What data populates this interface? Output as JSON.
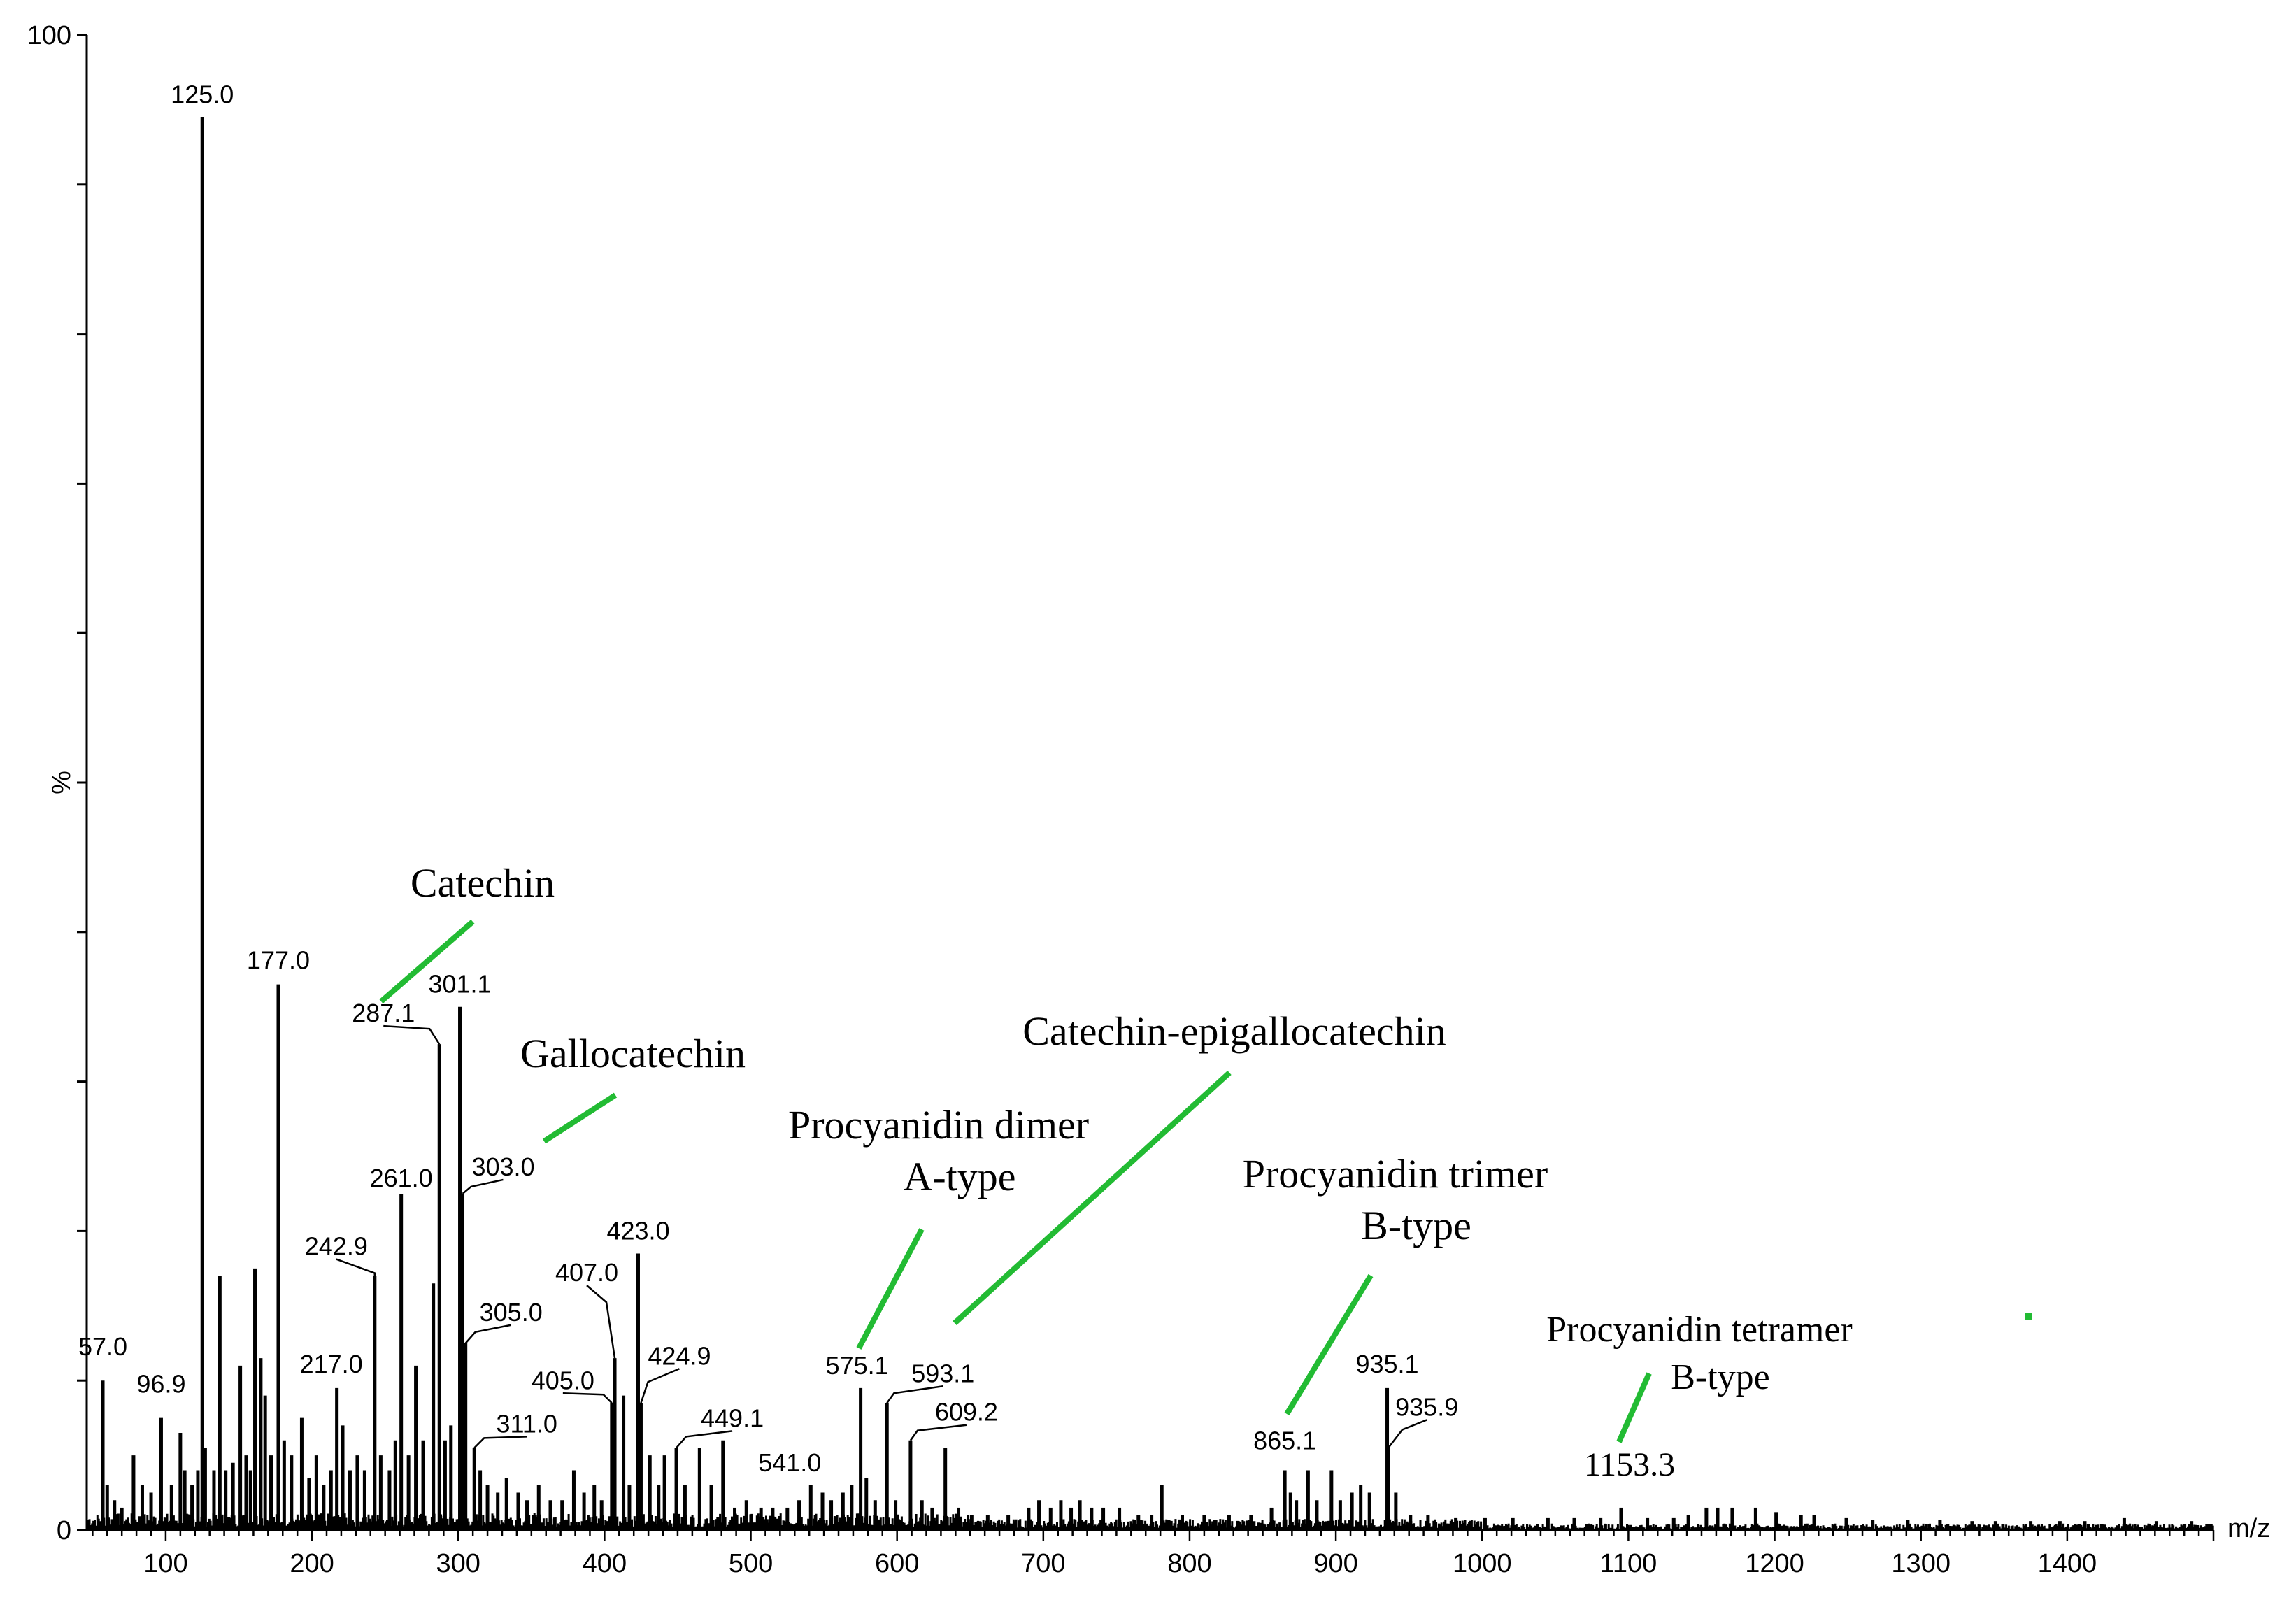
{
  "chart_data": {
    "type": "bar",
    "subtype": "mass-spectrum",
    "xlabel": "m/z",
    "ylabel": "%",
    "xlim": [
      46,
      1500
    ],
    "ylim": [
      0,
      100
    ],
    "x_ticks": [
      100,
      200,
      300,
      400,
      500,
      600,
      700,
      800,
      900,
      1000,
      1100,
      1200,
      1300,
      1400
    ],
    "x_tick_labels": [
      "100",
      "200",
      "300",
      "400",
      "500",
      "600",
      "700",
      "800",
      "900",
      "1000",
      "1100",
      "1200",
      "1300",
      "1400"
    ],
    "y_tick_labels": [
      "0",
      "100"
    ],
    "labeled_peaks": [
      {
        "label": "57.0",
        "mz": 57.0,
        "intensity": 10
      },
      {
        "label": "96.9",
        "mz": 96.9,
        "intensity": 7.5
      },
      {
        "label": "125.0",
        "mz": 125.0,
        "intensity": 94.5
      },
      {
        "label": "177.0",
        "mz": 177.0,
        "intensity": 36.5
      },
      {
        "label": "217.0",
        "mz": 217.0,
        "intensity": 9.5
      },
      {
        "label": "242.9",
        "mz": 242.9,
        "intensity": 17
      },
      {
        "label": "261.0",
        "mz": 261.0,
        "intensity": 22.5
      },
      {
        "label": "287.1",
        "mz": 287.1,
        "intensity": 32.5
      },
      {
        "label": "301.1",
        "mz": 301.1,
        "intensity": 35
      },
      {
        "label": "303.0",
        "mz": 303.0,
        "intensity": 22.5
      },
      {
        "label": "305.0",
        "mz": 305.0,
        "intensity": 12.5
      },
      {
        "label": "311.0",
        "mz": 311.0,
        "intensity": 5.5
      },
      {
        "label": "405.0",
        "mz": 405.0,
        "intensity": 8.5
      },
      {
        "label": "407.0",
        "mz": 407.0,
        "intensity": 11.5
      },
      {
        "label": "423.0",
        "mz": 423.0,
        "intensity": 18.5
      },
      {
        "label": "424.9",
        "mz": 424.9,
        "intensity": 8.5
      },
      {
        "label": "449.1",
        "mz": 449.1,
        "intensity": 5.5
      },
      {
        "label": "541.0",
        "mz": 541.0,
        "intensity": 3
      },
      {
        "label": "575.1",
        "mz": 575.1,
        "intensity": 9.5
      },
      {
        "label": "593.1",
        "mz": 593.1,
        "intensity": 8.5
      },
      {
        "label": "609.2",
        "mz": 609.2,
        "intensity": 6
      },
      {
        "label": "865.1",
        "mz": 865.1,
        "intensity": 4
      },
      {
        "label": "935.1",
        "mz": 935.1,
        "intensity": 9.5
      },
      {
        "label": "935.9",
        "mz": 935.9,
        "intensity": 5.5
      },
      {
        "label": "1153.3",
        "mz": 1153.3,
        "intensity": 1.5
      }
    ],
    "other_peaks": [
      {
        "mz": 60,
        "intensity": 3
      },
      {
        "mz": 65,
        "intensity": 2
      },
      {
        "mz": 70,
        "intensity": 1.5
      },
      {
        "mz": 78,
        "intensity": 5
      },
      {
        "mz": 84,
        "intensity": 3
      },
      {
        "mz": 90,
        "intensity": 2.5
      },
      {
        "mz": 104,
        "intensity": 3
      },
      {
        "mz": 110,
        "intensity": 6.5
      },
      {
        "mz": 113,
        "intensity": 4
      },
      {
        "mz": 118,
        "intensity": 3
      },
      {
        "mz": 122,
        "intensity": 4
      },
      {
        "mz": 127,
        "intensity": 5.5
      },
      {
        "mz": 133,
        "intensity": 4
      },
      {
        "mz": 137,
        "intensity": 17
      },
      {
        "mz": 141,
        "intensity": 4
      },
      {
        "mz": 146,
        "intensity": 4.5
      },
      {
        "mz": 151,
        "intensity": 11
      },
      {
        "mz": 155,
        "intensity": 5
      },
      {
        "mz": 158,
        "intensity": 4
      },
      {
        "mz": 161,
        "intensity": 17.5
      },
      {
        "mz": 165,
        "intensity": 11.5
      },
      {
        "mz": 168,
        "intensity": 9
      },
      {
        "mz": 172,
        "intensity": 5
      },
      {
        "mz": 181,
        "intensity": 6
      },
      {
        "mz": 186,
        "intensity": 5
      },
      {
        "mz": 193,
        "intensity": 7.5
      },
      {
        "mz": 198,
        "intensity": 3.5
      },
      {
        "mz": 203,
        "intensity": 5
      },
      {
        "mz": 208,
        "intensity": 3
      },
      {
        "mz": 213,
        "intensity": 4
      },
      {
        "mz": 221,
        "intensity": 7
      },
      {
        "mz": 226,
        "intensity": 4
      },
      {
        "mz": 231,
        "intensity": 5
      },
      {
        "mz": 236,
        "intensity": 4
      },
      {
        "mz": 247,
        "intensity": 5
      },
      {
        "mz": 253,
        "intensity": 4
      },
      {
        "mz": 257,
        "intensity": 6
      },
      {
        "mz": 266,
        "intensity": 5
      },
      {
        "mz": 271,
        "intensity": 11
      },
      {
        "mz": 276,
        "intensity": 6
      },
      {
        "mz": 283,
        "intensity": 16.5
      },
      {
        "mz": 291,
        "intensity": 6
      },
      {
        "mz": 295,
        "intensity": 7
      },
      {
        "mz": 315,
        "intensity": 4
      },
      {
        "mz": 320,
        "intensity": 3
      },
      {
        "mz": 327,
        "intensity": 2.5
      },
      {
        "mz": 333,
        "intensity": 3.5
      },
      {
        "mz": 341,
        "intensity": 2.5
      },
      {
        "mz": 347,
        "intensity": 2
      },
      {
        "mz": 355,
        "intensity": 3
      },
      {
        "mz": 363,
        "intensity": 2
      },
      {
        "mz": 371,
        "intensity": 2
      },
      {
        "mz": 379,
        "intensity": 4
      },
      {
        "mz": 386,
        "intensity": 2.5
      },
      {
        "mz": 393,
        "intensity": 3
      },
      {
        "mz": 398,
        "intensity": 2
      },
      {
        "mz": 413,
        "intensity": 9
      },
      {
        "mz": 417,
        "intensity": 3
      },
      {
        "mz": 431,
        "intensity": 5
      },
      {
        "mz": 437,
        "intensity": 3
      },
      {
        "mz": 441,
        "intensity": 5
      },
      {
        "mz": 455,
        "intensity": 3
      },
      {
        "mz": 465,
        "intensity": 5.5
      },
      {
        "mz": 473,
        "intensity": 3
      },
      {
        "mz": 481,
        "intensity": 6
      },
      {
        "mz": 489,
        "intensity": 1.5
      },
      {
        "mz": 497,
        "intensity": 2
      },
      {
        "mz": 507,
        "intensity": 1.5
      },
      {
        "mz": 515,
        "intensity": 1.5
      },
      {
        "mz": 525,
        "intensity": 1.5
      },
      {
        "mz": 533,
        "intensity": 2
      },
      {
        "mz": 549,
        "intensity": 2.5
      },
      {
        "mz": 555,
        "intensity": 2
      },
      {
        "mz": 563,
        "intensity": 2.5
      },
      {
        "mz": 569,
        "intensity": 3
      },
      {
        "mz": 579,
        "intensity": 3.5
      },
      {
        "mz": 585,
        "intensity": 2
      },
      {
        "mz": 599,
        "intensity": 2
      },
      {
        "mz": 617,
        "intensity": 2
      },
      {
        "mz": 624,
        "intensity": 1.5
      },
      {
        "mz": 633,
        "intensity": 5.5
      },
      {
        "mz": 642,
        "intensity": 1.5
      },
      {
        "mz": 651,
        "intensity": 1
      },
      {
        "mz": 662,
        "intensity": 1
      },
      {
        "mz": 676,
        "intensity": 1
      },
      {
        "mz": 690,
        "intensity": 1.5
      },
      {
        "mz": 697,
        "intensity": 2
      },
      {
        "mz": 705,
        "intensity": 1.5
      },
      {
        "mz": 712,
        "intensity": 2
      },
      {
        "mz": 719,
        "intensity": 1.5
      },
      {
        "mz": 725,
        "intensity": 2
      },
      {
        "mz": 733,
        "intensity": 1.5
      },
      {
        "mz": 741,
        "intensity": 1.5
      },
      {
        "mz": 752,
        "intensity": 1.5
      },
      {
        "mz": 765,
        "intensity": 1
      },
      {
        "mz": 774,
        "intensity": 1
      },
      {
        "mz": 781,
        "intensity": 3
      },
      {
        "mz": 795,
        "intensity": 1
      },
      {
        "mz": 810,
        "intensity": 1
      },
      {
        "mz": 827,
        "intensity": 1
      },
      {
        "mz": 842,
        "intensity": 1
      },
      {
        "mz": 856,
        "intensity": 1.5
      },
      {
        "mz": 869,
        "intensity": 2.5
      },
      {
        "mz": 873,
        "intensity": 2
      },
      {
        "mz": 881,
        "intensity": 4
      },
      {
        "mz": 887,
        "intensity": 2
      },
      {
        "mz": 897,
        "intensity": 4
      },
      {
        "mz": 903,
        "intensity": 2
      },
      {
        "mz": 911,
        "intensity": 2.5
      },
      {
        "mz": 917,
        "intensity": 3
      },
      {
        "mz": 923,
        "intensity": 2.5
      },
      {
        "mz": 941,
        "intensity": 2.5
      },
      {
        "mz": 951,
        "intensity": 1
      },
      {
        "mz": 963,
        "intensity": 1
      },
      {
        "mz": 982,
        "intensity": 0.8
      },
      {
        "mz": 1002,
        "intensity": 0.8
      },
      {
        "mz": 1021,
        "intensity": 0.8
      },
      {
        "mz": 1045,
        "intensity": 0.8
      },
      {
        "mz": 1063,
        "intensity": 0.8
      },
      {
        "mz": 1081,
        "intensity": 0.8
      },
      {
        "mz": 1095,
        "intensity": 1.5
      },
      {
        "mz": 1113,
        "intensity": 0.8
      },
      {
        "mz": 1131,
        "intensity": 0.8
      },
      {
        "mz": 1141,
        "intensity": 1
      },
      {
        "mz": 1161,
        "intensity": 1.5
      },
      {
        "mz": 1171,
        "intensity": 1.5
      },
      {
        "mz": 1187,
        "intensity": 1.5
      },
      {
        "mz": 1201,
        "intensity": 1.2
      },
      {
        "mz": 1218,
        "intensity": 1
      },
      {
        "mz": 1227,
        "intensity": 1
      },
      {
        "mz": 1249,
        "intensity": 0.8
      },
      {
        "mz": 1267,
        "intensity": 0.7
      },
      {
        "mz": 1291,
        "intensity": 0.7
      },
      {
        "mz": 1313,
        "intensity": 0.7
      },
      {
        "mz": 1335,
        "intensity": 0.6
      },
      {
        "mz": 1351,
        "intensity": 0.6
      },
      {
        "mz": 1375,
        "intensity": 0.6
      },
      {
        "mz": 1395,
        "intensity": 0.6
      },
      {
        "mz": 1412,
        "intensity": 0.6
      },
      {
        "mz": 1439,
        "intensity": 0.8
      },
      {
        "mz": 1461,
        "intensity": 0.6
      },
      {
        "mz": 1485,
        "intensity": 0.6
      }
    ],
    "annotations": [
      {
        "lines": [
          "Catechin"
        ],
        "target_mz": 287.1
      },
      {
        "lines": [
          "Gallocatechin"
        ],
        "target_mz": 303.0
      },
      {
        "lines": [
          "Procyanidin dimer",
          "A-type"
        ],
        "target_mz": 575.1
      },
      {
        "lines": [
          "Catechin-epigallocatechin"
        ],
        "target_mz": 593.1
      },
      {
        "lines": [
          "Procyanidin trimer",
          "B-type"
        ],
        "target_mz": 865.1
      },
      {
        "lines": [
          "Procyanidin tetramer",
          "B-type"
        ],
        "target_mz": 1153.3
      }
    ],
    "colors": {
      "peaks": "#000000",
      "annotation_pointer": "#22bb33"
    }
  }
}
